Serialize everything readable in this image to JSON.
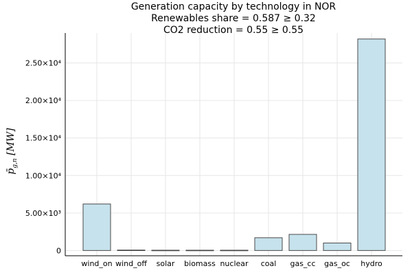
{
  "chart_data": {
    "type": "bar",
    "title": [
      "Generation capacity by technology in NOR",
      "Renewables share = 0.587 ≥ 0.32",
      "CO2 reduction = 0.55 ≥ 0.55"
    ],
    "xlabel": "",
    "ylabel": "p̄_{g,n} [MW]",
    "categories": [
      "wind_on",
      "wind_off",
      "solar",
      "biomass",
      "nuclear",
      "coal",
      "gas_cc",
      "gas_oc",
      "hydro"
    ],
    "values": [
      6200,
      60,
      40,
      40,
      40,
      1700,
      2150,
      1000,
      28200
    ],
    "ylim": [
      -700,
      29000
    ],
    "yticks": [
      0,
      5000,
      10000,
      15000,
      20000,
      25000
    ],
    "ytick_labels": [
      "0",
      "5.00×10³",
      "1.00×10⁴",
      "1.50×10⁴",
      "2.00×10⁴",
      "2.50×10⁴"
    ],
    "grid": true,
    "legend": "none",
    "colors": {
      "bar_fill": "#c6e2ec",
      "bar_stroke": "#4a4a4a"
    }
  }
}
